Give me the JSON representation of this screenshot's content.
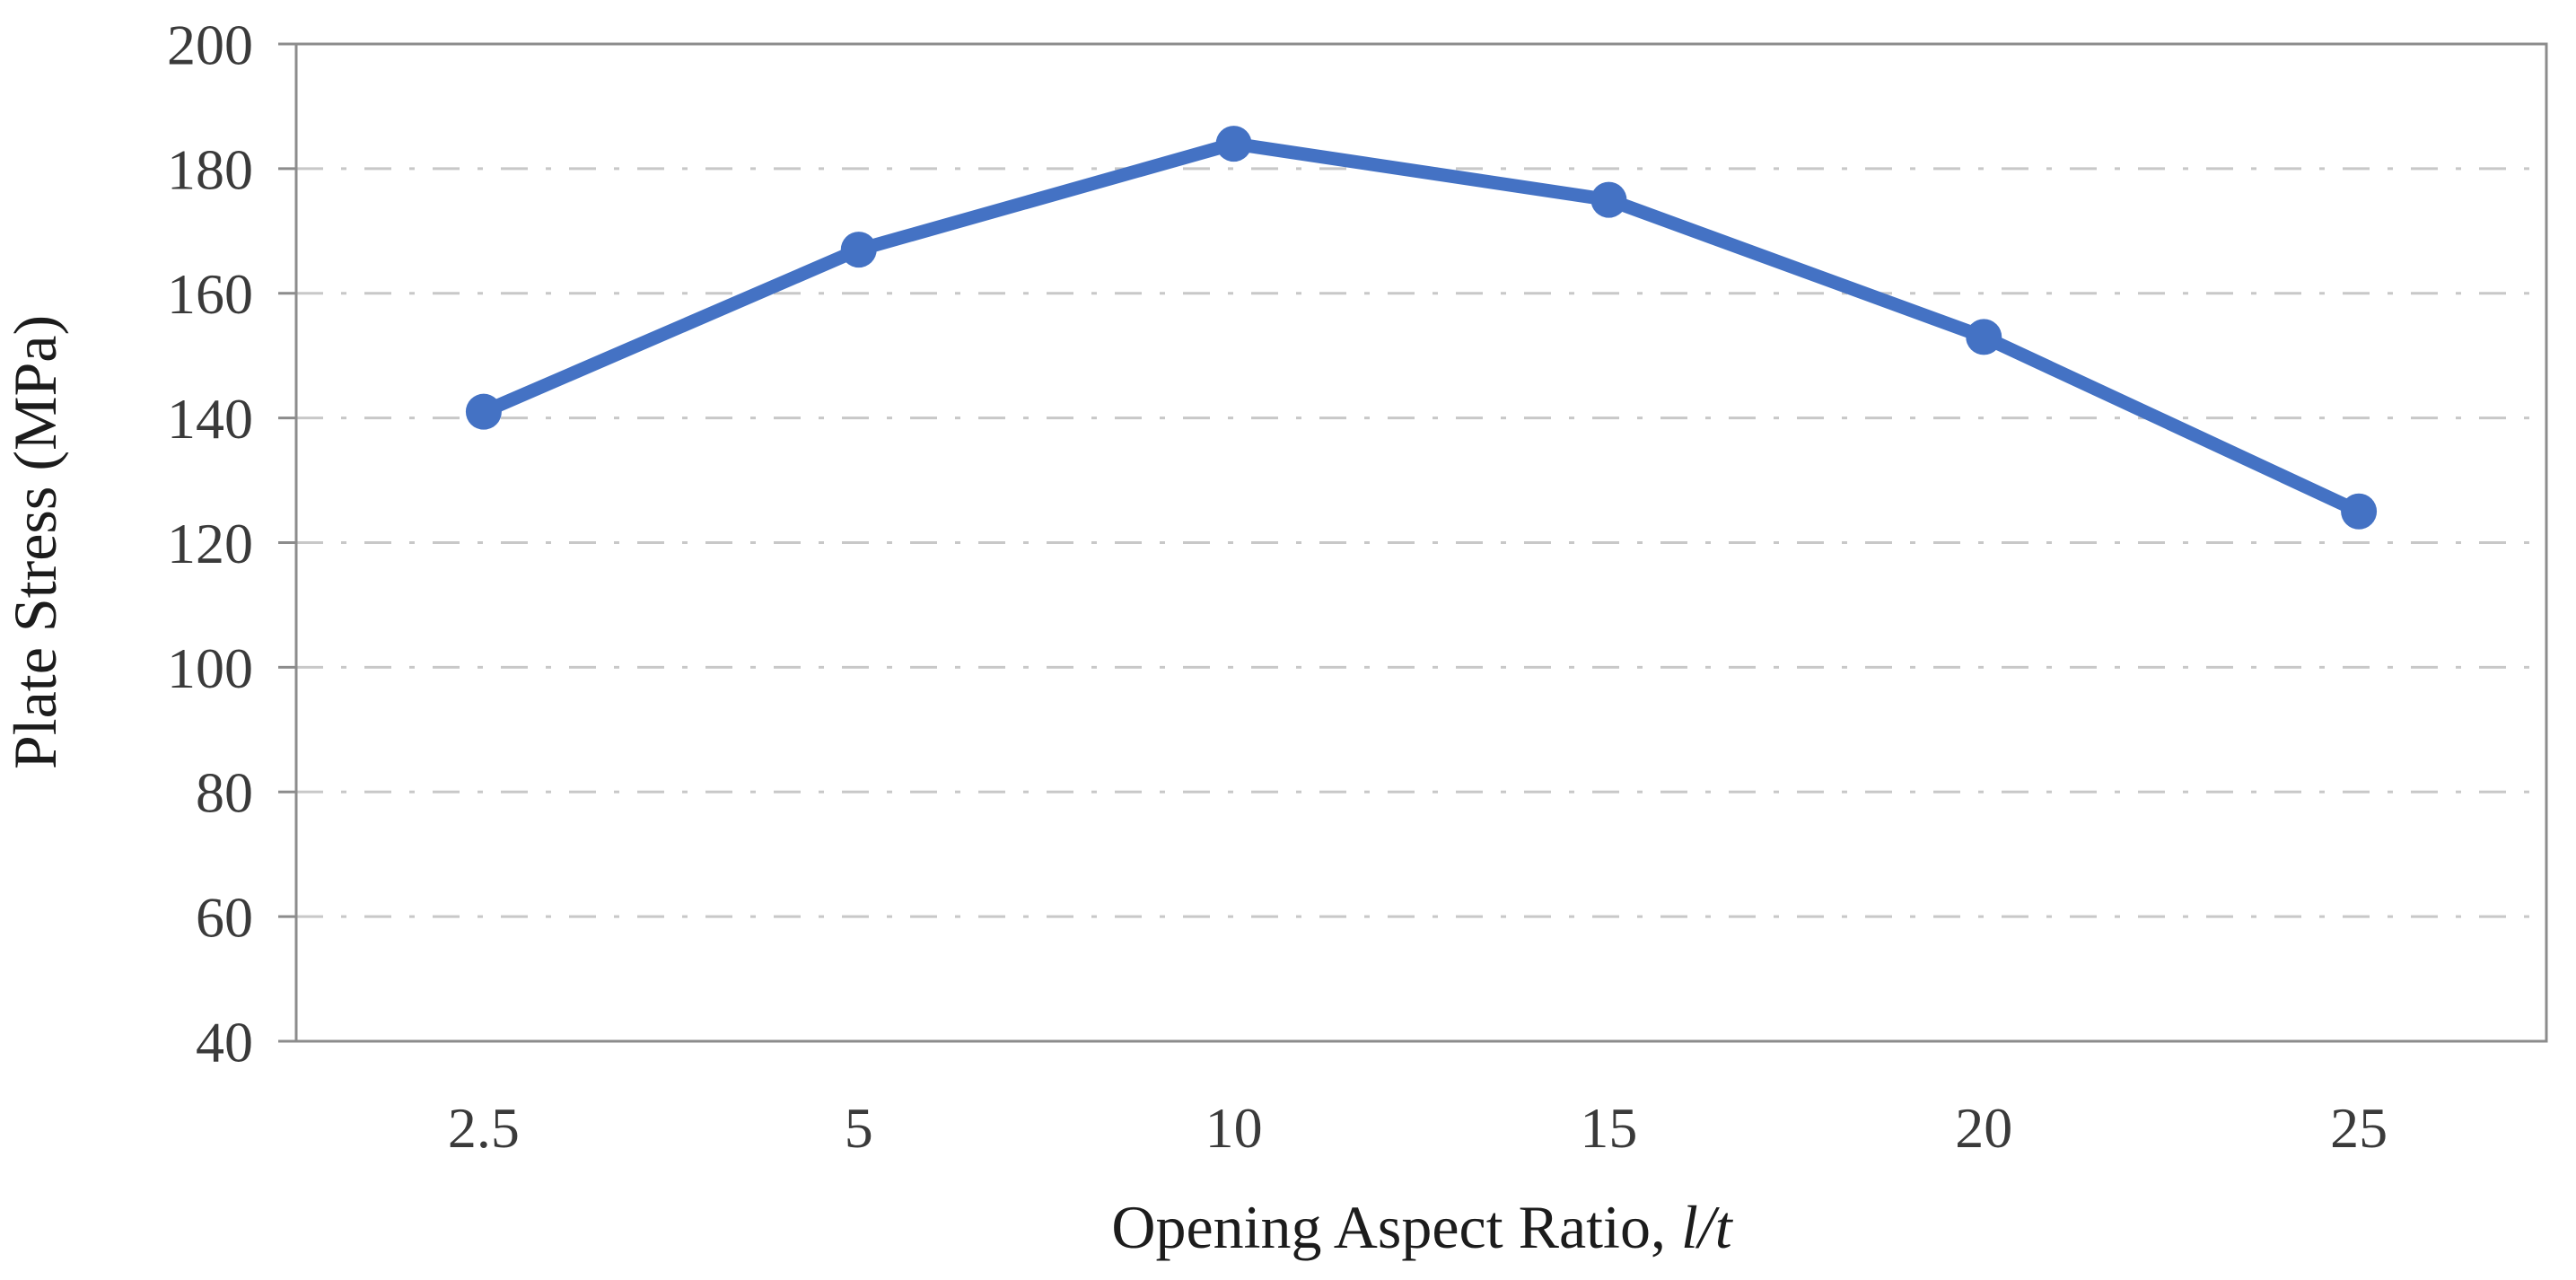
{
  "chart_data": {
    "type": "line",
    "title": "",
    "categories": [
      "2.5",
      "5",
      "10",
      "15",
      "20",
      "25"
    ],
    "series": [
      {
        "name": "Plate Stress",
        "color": "#4472C4",
        "values": [
          141,
          167,
          184,
          175,
          153,
          125
        ]
      }
    ],
    "xlabel": "Opening Aspect Ratio, ",
    "xlabel_italic": "l/t",
    "ylabel": "Plate Stress (MPa)",
    "xaxis_type": "category",
    "ylim": [
      40,
      200
    ],
    "yticks": [
      200,
      180,
      160,
      140,
      120,
      100,
      80,
      60,
      40
    ],
    "grid": {
      "horizontal": true,
      "vertical": false,
      "style": "dash-dot",
      "color": "#C8C8C8"
    },
    "legend_position": "none",
    "frame_color": "#8C8C8C",
    "tick_label_color": "#3A3A3A",
    "axis_title_color": "#1C1C1C",
    "marker_shape": "circle"
  }
}
